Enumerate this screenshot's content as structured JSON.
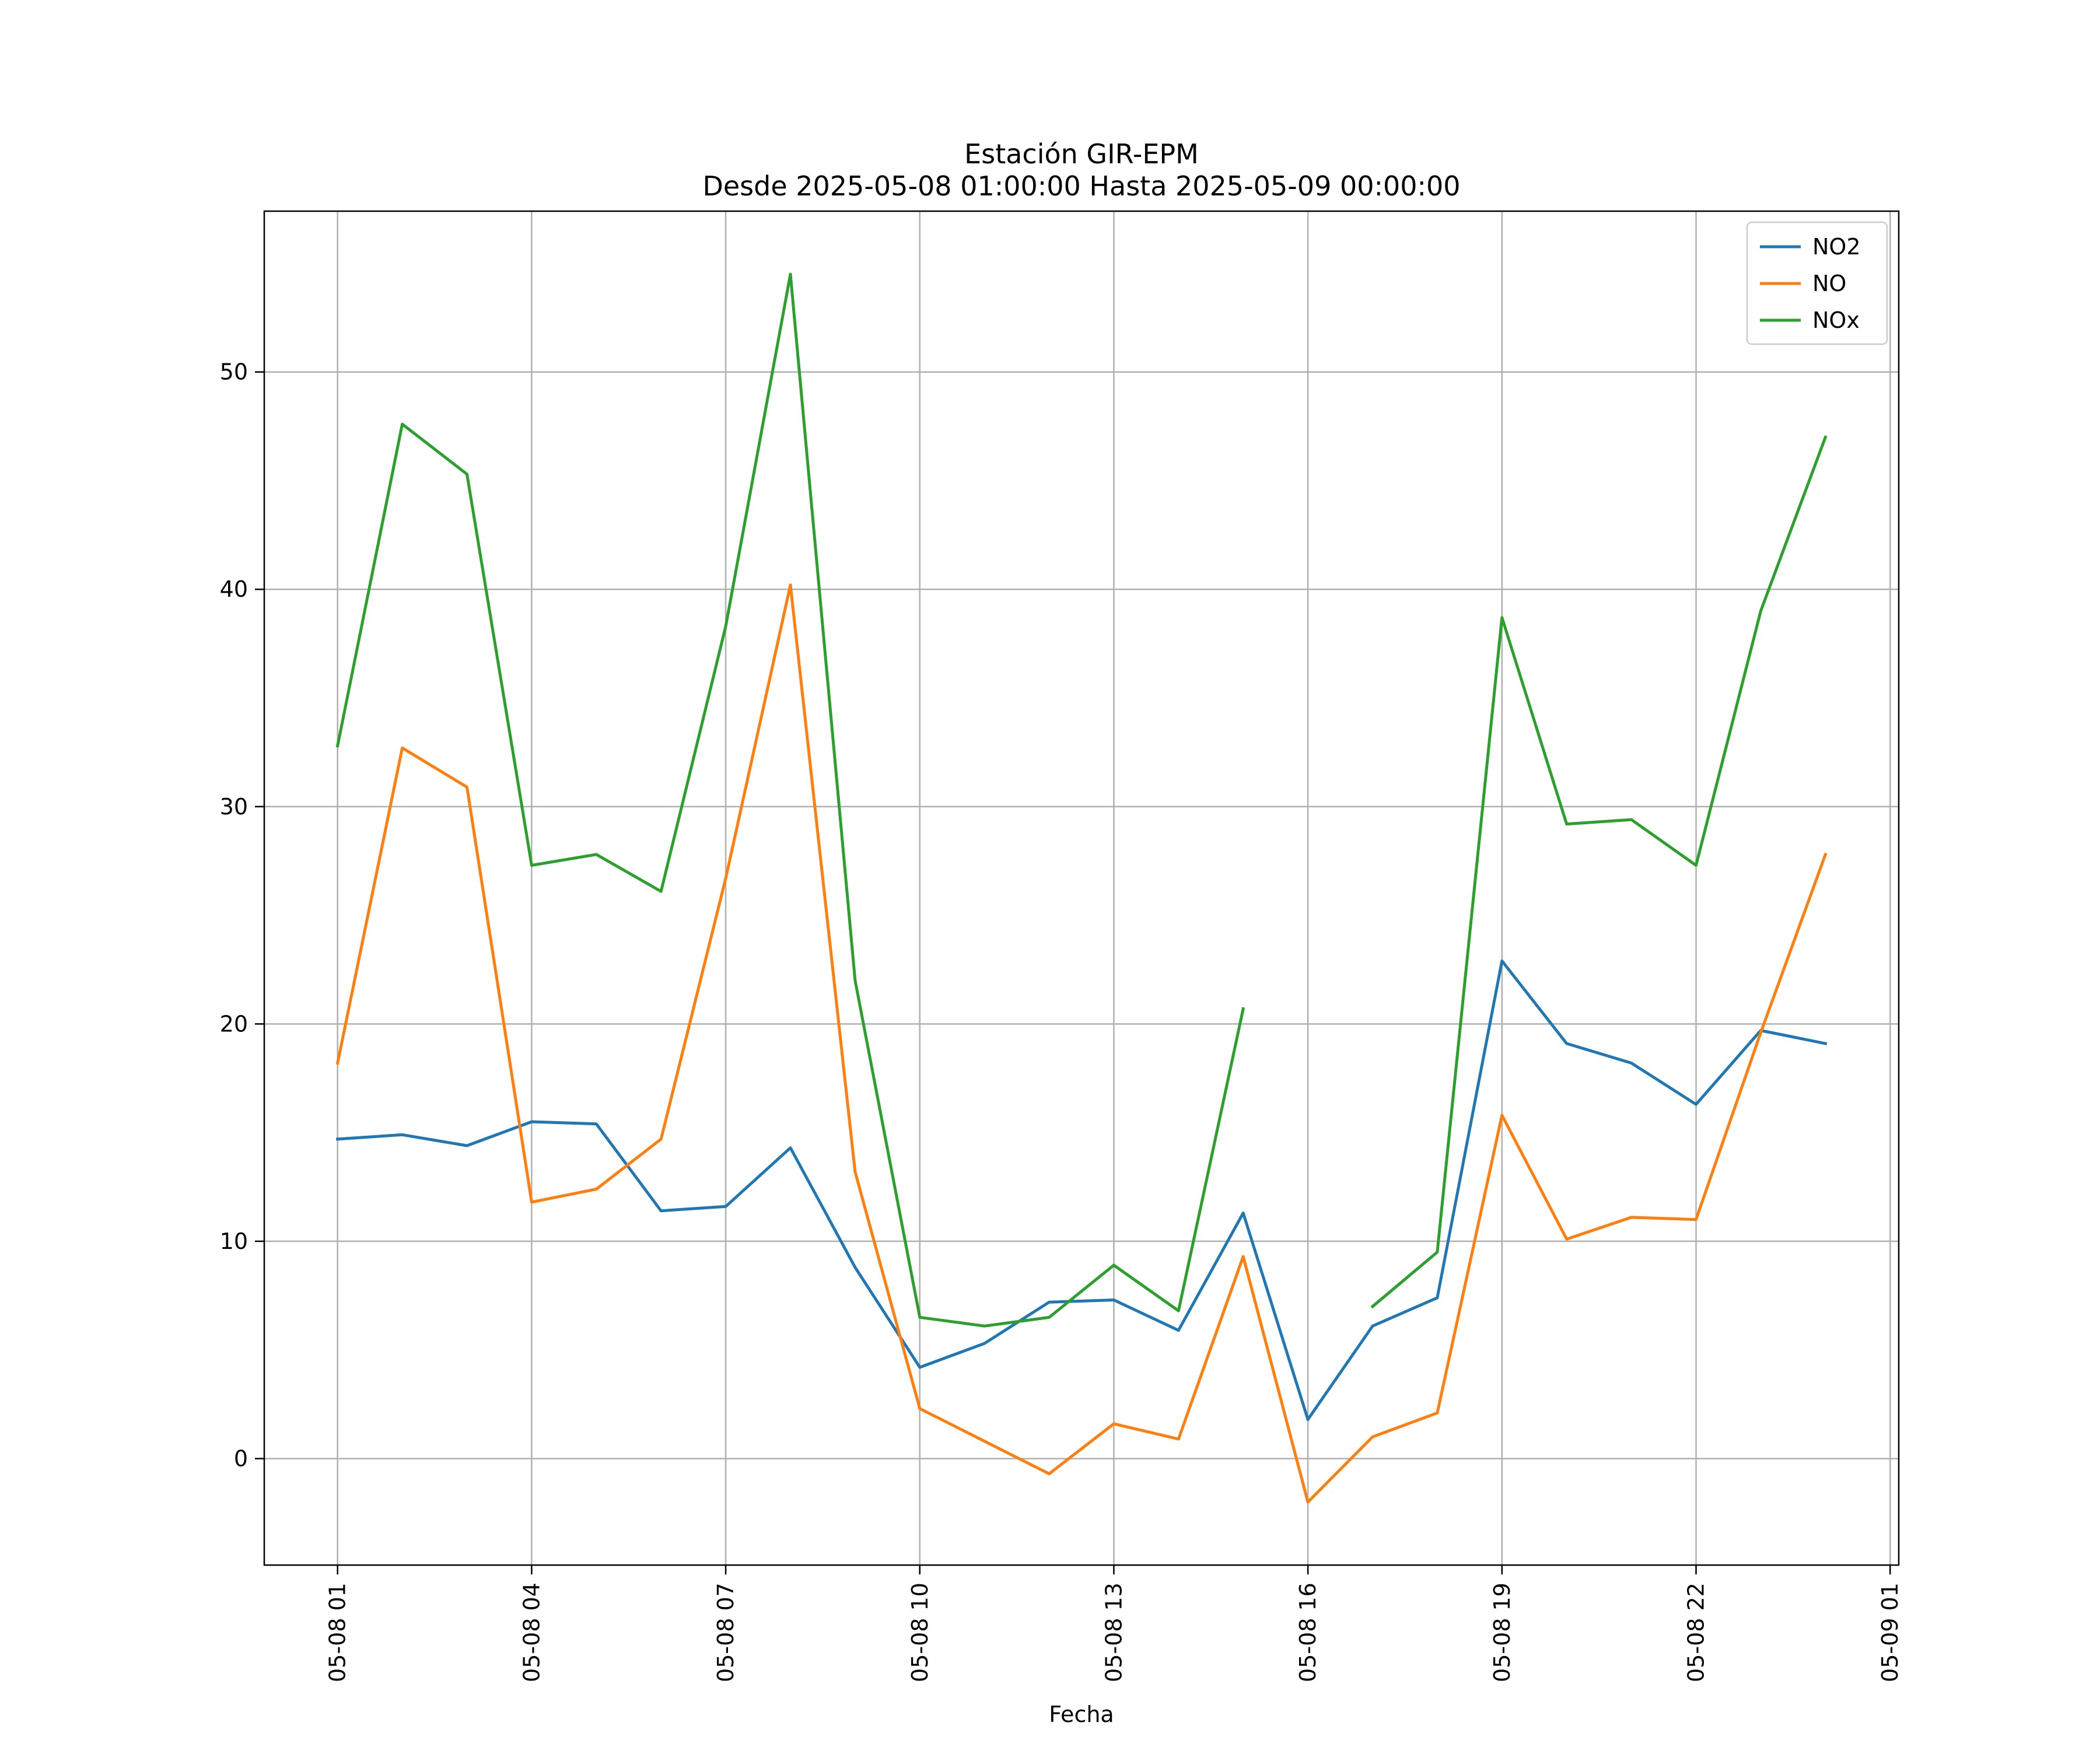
{
  "chart_data": {
    "type": "line",
    "title": "Estación GIR-EPM",
    "subtitle": "Desde 2025-05-08 01:00:00 Hasta 2025-05-09 00:00:00",
    "xlabel": "Fecha",
    "ylabel": "",
    "x": [
      "2025-05-08 01:00",
      "2025-05-08 02:00",
      "2025-05-08 03:00",
      "2025-05-08 04:00",
      "2025-05-08 05:00",
      "2025-05-08 06:00",
      "2025-05-08 07:00",
      "2025-05-08 08:00",
      "2025-05-08 09:00",
      "2025-05-08 10:00",
      "2025-05-08 11:00",
      "2025-05-08 12:00",
      "2025-05-08 13:00",
      "2025-05-08 14:00",
      "2025-05-08 15:00",
      "2025-05-08 16:00",
      "2025-05-08 17:00",
      "2025-05-08 18:00",
      "2025-05-08 19:00",
      "2025-05-08 20:00",
      "2025-05-08 21:00",
      "2025-05-08 22:00",
      "2025-05-08 23:00",
      "2025-05-09 00:00"
    ],
    "xlim": [
      "2025-05-07 23:52",
      "2025-05-09 01:08"
    ],
    "ylim": [
      -4.9,
      57.4
    ],
    "x_ticks": [
      "2025-05-08 01:00",
      "2025-05-08 04:00",
      "2025-05-08 07:00",
      "2025-05-08 10:00",
      "2025-05-08 13:00",
      "2025-05-08 16:00",
      "2025-05-08 19:00",
      "2025-05-08 22:00",
      "2025-05-09 01:00"
    ],
    "x_tick_labels": [
      "05-08 01",
      "05-08 04",
      "05-08 07",
      "05-08 10",
      "05-08 13",
      "05-08 16",
      "05-08 19",
      "05-08 22",
      "05-09 01"
    ],
    "y_ticks": [
      0,
      10,
      20,
      30,
      40,
      50
    ],
    "y_tick_labels": [
      "0",
      "10",
      "20",
      "30",
      "40",
      "50"
    ],
    "grid": true,
    "legend_position": "top-right",
    "series": [
      {
        "name": "NO2",
        "color": "#1f77b4",
        "values": [
          14.7,
          14.9,
          14.4,
          15.5,
          15.4,
          11.4,
          11.6,
          14.3,
          8.8,
          4.2,
          5.3,
          7.2,
          7.3,
          5.9,
          11.3,
          1.8,
          6.1,
          7.4,
          22.9,
          19.1,
          18.2,
          16.3,
          19.7,
          19.1
        ]
      },
      {
        "name": "NO",
        "color": "#ff7f0e",
        "values": [
          18.2,
          32.7,
          30.9,
          11.8,
          12.4,
          14.7,
          26.7,
          40.2,
          13.2,
          2.3,
          0.8,
          -0.7,
          1.6,
          0.9,
          9.3,
          -2.0,
          1.0,
          2.1,
          15.8,
          10.1,
          11.1,
          11.0,
          19.6,
          27.8
        ]
      },
      {
        "name": "NOx",
        "color": "#2ca02c",
        "values": [
          32.8,
          47.6,
          45.3,
          27.3,
          27.8,
          26.1,
          38.3,
          54.5,
          22.0,
          6.5,
          6.1,
          6.5,
          8.9,
          6.8,
          20.7,
          null,
          7.0,
          9.5,
          38.7,
          29.2,
          29.4,
          27.3,
          39.0,
          47.0
        ]
      }
    ]
  }
}
